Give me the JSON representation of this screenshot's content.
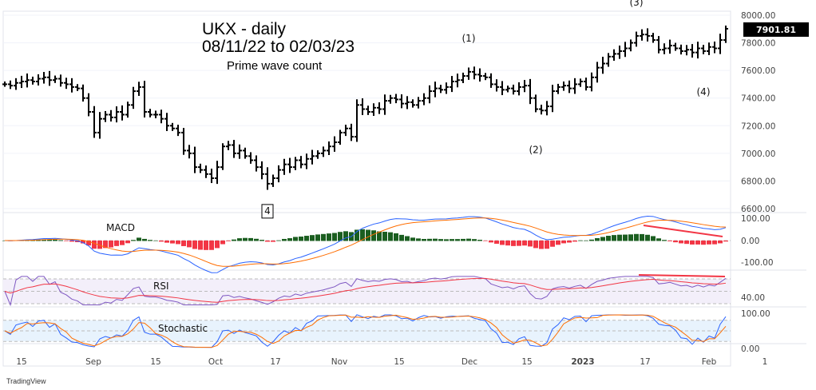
{
  "chart_data": {
    "type": "ohlc",
    "title": "UKX - daily",
    "subtitle": "08/11/22 to 02/03/23",
    "note": "Prime wave count",
    "last_price": "7901.81",
    "price_ticks": [
      "8000.00",
      "7800.00",
      "7600.00",
      "7400.00",
      "7200.00",
      "7000.00",
      "6800.00",
      "6600.00"
    ],
    "ylim": [
      6600,
      8000
    ],
    "x_ticks": [
      "15",
      "Sep",
      "15",
      "Oct",
      "17",
      "Nov",
      "15",
      "Dec",
      "15",
      "2023",
      "17",
      "Feb",
      "1"
    ],
    "closes": [
      7500,
      7490,
      7510,
      7520,
      7530,
      7520,
      7540,
      7550,
      7530,
      7540,
      7510,
      7500,
      7480,
      7470,
      7400,
      7300,
      7150,
      7250,
      7280,
      7260,
      7300,
      7280,
      7350,
      7450,
      7480,
      7300,
      7280,
      7280,
      7250,
      7200,
      7180,
      7150,
      7020,
      7000,
      6900,
      6880,
      6850,
      6820,
      6900,
      7050,
      7060,
      7000,
      7020,
      6980,
      6950,
      6900,
      6850,
      6780,
      6820,
      6880,
      6920,
      6900,
      6950,
      6920,
      6960,
      6980,
      7000,
      7020,
      7050,
      7080,
      7150,
      7180,
      7120,
      7350,
      7320,
      7300,
      7330,
      7320,
      7380,
      7400,
      7390,
      7360,
      7370,
      7350,
      7380,
      7400,
      7450,
      7470,
      7460,
      7480,
      7520,
      7530,
      7560,
      7590,
      7570,
      7560,
      7550,
      7500,
      7480,
      7460,
      7470,
      7450,
      7480,
      7490,
      7400,
      7320,
      7310,
      7340,
      7450,
      7480,
      7490,
      7470,
      7500,
      7520,
      7480,
      7550,
      7620,
      7650,
      7700,
      7720,
      7740,
      7760,
      7800,
      7850,
      7860,
      7850,
      7820,
      7750,
      7760,
      7780,
      7760,
      7740,
      7750,
      7730,
      7760,
      7740,
      7770,
      7760,
      7820,
      7901.81
    ],
    "wave_labels": [
      {
        "text": "(1)",
        "index": 83
      },
      {
        "text": "(2)",
        "index": 95
      },
      {
        "text": "(3)",
        "index": 113
      },
      {
        "text": "(4)",
        "index": 125
      },
      {
        "text": "4",
        "index": 47
      }
    ],
    "indicators": [
      {
        "name": "MACD",
        "ticks": [
          "100.00",
          "0.00",
          "-100.00"
        ]
      },
      {
        "name": "RSI",
        "ticks": [
          "40.00"
        ]
      },
      {
        "name": "Stochastic",
        "ticks": [
          "100.00",
          "0.00"
        ]
      }
    ],
    "colors": {
      "price": "#000000",
      "macd": "#2962ff",
      "signal": "#ff6d00",
      "hist_pos": "#1b5e20",
      "hist_neg": "#f23645",
      "divergence": "#f23645",
      "rsi": "#7e57c2",
      "rsi_ma": "#f23645"
    }
  },
  "branding": "TradingView"
}
